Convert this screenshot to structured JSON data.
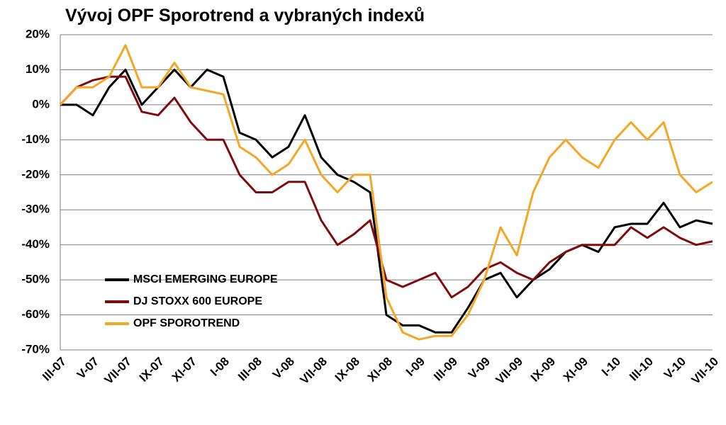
{
  "chart_data": {
    "type": "line",
    "title": "Vývoj OPF Sporotrend a vybraných indexů",
    "categories": [
      "III-07",
      null,
      "V-07",
      null,
      "VII-07",
      null,
      "IX-07",
      null,
      "XI-07",
      null,
      "I-08",
      null,
      "III-08",
      null,
      "V-08",
      null,
      "VII-08",
      null,
      "IX-08",
      null,
      "XI-08",
      null,
      "I-09",
      null,
      "III-09",
      null,
      "V-09",
      null,
      "VII-09",
      null,
      "IX-09",
      null,
      "XI-09",
      null,
      "I-10",
      null,
      "III-10",
      null,
      "V-10",
      null,
      "VII-10"
    ],
    "series": [
      {
        "name": "MSCI EMERGING EUROPE",
        "color": "#000000",
        "values": [
          0,
          0,
          -3,
          5,
          10,
          0,
          5,
          10,
          5,
          10,
          8,
          -8,
          -10,
          -15,
          -12,
          -3,
          -15,
          -20,
          -22,
          -25,
          -60,
          -63,
          -63,
          -65,
          -65,
          -58,
          -50,
          -48,
          -55,
          -50,
          -47,
          -42,
          -40,
          -42,
          -35,
          -34,
          -34,
          -28,
          -35,
          -33,
          -34
        ]
      },
      {
        "name": "DJ STOXX 600 EUROPE",
        "color": "#7f0c0c",
        "values": [
          0,
          5,
          7,
          8,
          8,
          -2,
          -3,
          2,
          -5,
          -10,
          -10,
          -20,
          -25,
          -25,
          -22,
          -22,
          -33,
          -40,
          -37,
          -33,
          -50,
          -52,
          -50,
          -48,
          -55,
          -52,
          -47,
          -45,
          -48,
          -50,
          -45,
          -42,
          -40,
          -40,
          -40,
          -35,
          -38,
          -35,
          -38,
          -40,
          -39
        ]
      },
      {
        "name": "OPF SPOROTREND",
        "color": "#f5a623",
        "values": [
          0,
          5,
          5,
          8,
          17,
          5,
          5,
          12,
          5,
          4,
          3,
          -12,
          -15,
          -20,
          -17,
          -10,
          -20,
          -25,
          -20,
          -20,
          -55,
          -65,
          -67,
          -66,
          -66,
          -60,
          -50,
          -35,
          -43,
          -25,
          -15,
          -10,
          -15,
          -18,
          -10,
          -5,
          -10,
          -5,
          -20,
          -25,
          -22
        ]
      }
    ],
    "ylim": [
      -70,
      20
    ],
    "yticks": [
      {
        "value": -70,
        "label": "-70%"
      },
      {
        "value": -60,
        "label": "-60%"
      },
      {
        "value": -50,
        "label": "-50%"
      },
      {
        "value": -40,
        "label": "-40%"
      },
      {
        "value": -30,
        "label": "-30%"
      },
      {
        "value": -20,
        "label": "-20%"
      },
      {
        "value": -10,
        "label": "-10%"
      },
      {
        "value": 0,
        "label": "0%"
      },
      {
        "value": 10,
        "label": "10%"
      },
      {
        "value": 20,
        "label": "20%"
      }
    ],
    "grid": true
  }
}
